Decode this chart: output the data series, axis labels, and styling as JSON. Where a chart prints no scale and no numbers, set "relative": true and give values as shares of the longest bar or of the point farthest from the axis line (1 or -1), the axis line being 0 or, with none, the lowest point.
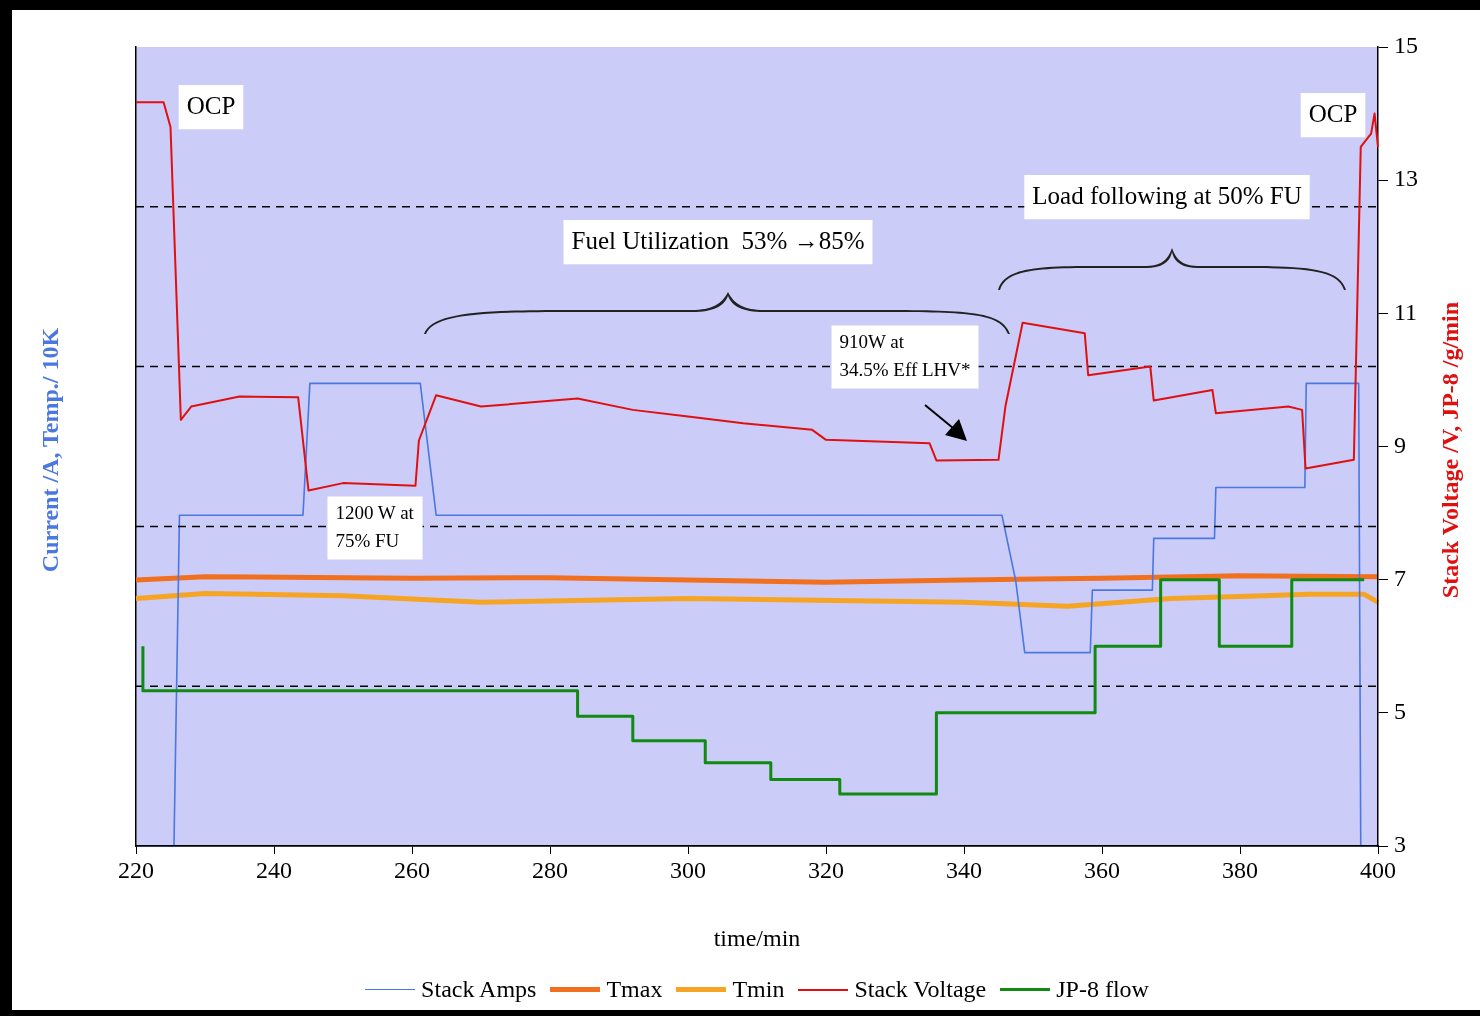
{
  "chart_data": [
    {
      "type": "line",
      "ylabel": "Current /A, Temp./ 10K",
      "relative": true,
      "xlim": [
        220,
        400
      ],
      "legend": "bottom",
      "grid": false,
      "series": [
        {
          "name": "Stack Amps",
          "type": "line",
          "color": "#4a78e0",
          "x": [
            220,
            225.5,
            226.3,
            244.2,
            245.2,
            261.2,
            263.5,
            345.5,
            347.5,
            348.8,
            358.3,
            358.6,
            367.3,
            367.5,
            376.3,
            376.5,
            389.4,
            389.6,
            397.2,
            397.5,
            400
          ],
          "values": [
            0,
            0,
            0.715,
            0.715,
            1,
            1,
            0.715,
            0.715,
            0.573,
            0.418,
            0.418,
            0.553,
            0.553,
            0.665,
            0.665,
            0.775,
            0.775,
            1,
            1,
            0,
            0
          ]
        },
        {
          "name": "Tmax",
          "type": "line",
          "color": "#f07020",
          "x": [
            220,
            230,
            260,
            280,
            300,
            320,
            340,
            360,
            380,
            400
          ],
          "values": [
            0.575,
            0.582,
            0.579,
            0.58,
            0.575,
            0.57,
            0.575,
            0.579,
            0.584,
            0.582
          ]
        },
        {
          "name": "Tmin",
          "type": "line",
          "color": "#f5a523",
          "x": [
            220,
            230,
            250,
            270,
            300,
            340,
            355,
            370,
            390,
            398,
            400
          ],
          "values": [
            0.535,
            0.546,
            0.541,
            0.527,
            0.535,
            0.527,
            0.518,
            0.535,
            0.544,
            0.544,
            0.527
          ]
        }
      ]
    },
    {
      "type": "line",
      "xlabel": "time/min",
      "y2label": "Stack Voltage /V, JP-8 /g/min",
      "xlim": [
        220,
        400
      ],
      "xticks": [
        220,
        240,
        260,
        280,
        300,
        320,
        340,
        360,
        380,
        400
      ],
      "y2lim": [
        3,
        15
      ],
      "y2ticks": [
        3,
        5,
        7,
        9,
        11,
        13,
        15
      ],
      "legend": "bottom",
      "grid": false,
      "series": [
        {
          "name": "Stack Voltage",
          "type": "line",
          "axis": "y2",
          "color": "#e01010",
          "x": [
            220,
            224,
            225,
            226.5,
            228,
            235,
            243.5,
            245,
            250,
            260.5,
            261,
            263.5,
            270,
            284,
            292,
            300,
            308,
            318,
            320,
            335,
            336,
            345,
            346,
            348.5,
            357.5,
            358,
            367,
            367.5,
            376,
            376.5,
            387,
            389,
            389.5,
            396.5,
            397.5,
            399,
            399.5,
            400
          ],
          "values": [
            14.17,
            14.17,
            13.8,
            9.4,
            9.6,
            9.75,
            9.74,
            8.34,
            8.45,
            8.41,
            9.09,
            9.77,
            9.6,
            9.72,
            9.55,
            9.45,
            9.35,
            9.25,
            9.1,
            9.05,
            8.79,
            8.8,
            9.6,
            10.86,
            10.7,
            10.07,
            10.2,
            9.69,
            9.85,
            9.5,
            9.6,
            9.55,
            8.67,
            8.8,
            13.5,
            13.7,
            14.0,
            13.5
          ]
        },
        {
          "name": "JP-8 flow",
          "type": "step",
          "axis": "y2",
          "color": "#108a10",
          "x": [
            221,
            284,
            292,
            302.5,
            312,
            322,
            336,
            359,
            368.5,
            377,
            387.5,
            390,
            398
          ],
          "values": [
            6,
            5.33,
            4.95,
            4.58,
            4.25,
            4,
            3.78,
            5,
            6,
            7,
            6,
            7,
            7
          ]
        }
      ],
      "ref_lines": [
        {
          "axis": "y2",
          "value": 5.4,
          "line_style": "dashed",
          "color": "#000000"
        },
        {
          "axis": "y2",
          "value": 7.8,
          "line_style": "dashed",
          "color": "#000000"
        },
        {
          "axis": "y2",
          "value": 10.2,
          "line_style": "dashed",
          "color": "#000000"
        },
        {
          "axis": "y2",
          "value": 12.6,
          "line_style": "dashed",
          "color": "#000000"
        }
      ],
      "annotations": [
        "OCP",
        "OCP",
        "Fuel Utilization  53% →85%",
        "Load following at 50% FU",
        "910W at\n34.5% Eff LHV*",
        "1200 W at\n75% FU"
      ]
    }
  ]
}
